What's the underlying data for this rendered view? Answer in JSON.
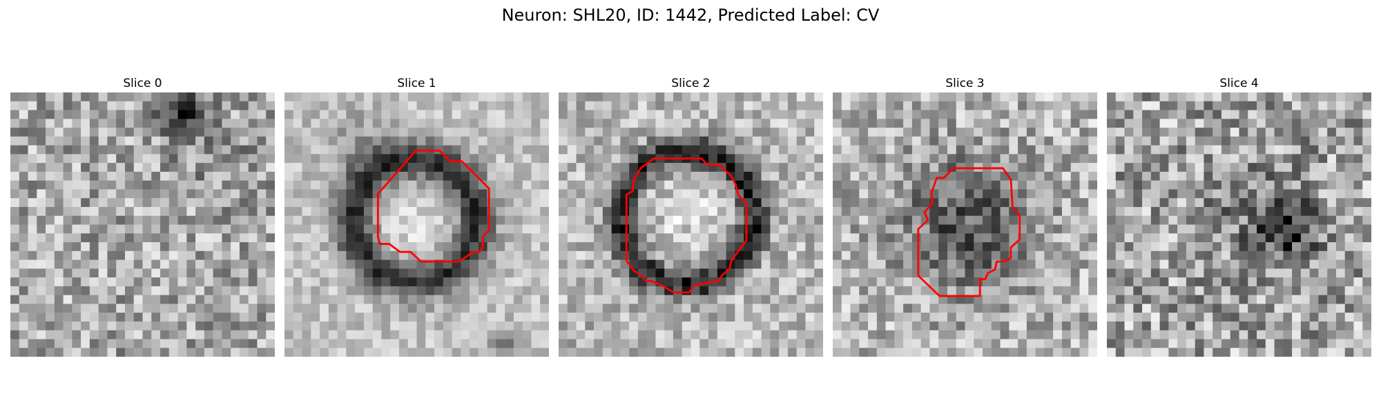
{
  "figure": {
    "title": "Neuron: SHL20, ID: 1442, Predicted Label: CV",
    "outline_color": "#ff0000",
    "colormap": "grayscale"
  },
  "panels": [
    {
      "title": "Slice 0",
      "has_outline": false
    },
    {
      "title": "Slice 1",
      "has_outline": true
    },
    {
      "title": "Slice 2",
      "has_outline": true
    },
    {
      "title": "Slice 3",
      "has_outline": true
    },
    {
      "title": "Slice 4",
      "has_outline": false
    }
  ]
}
